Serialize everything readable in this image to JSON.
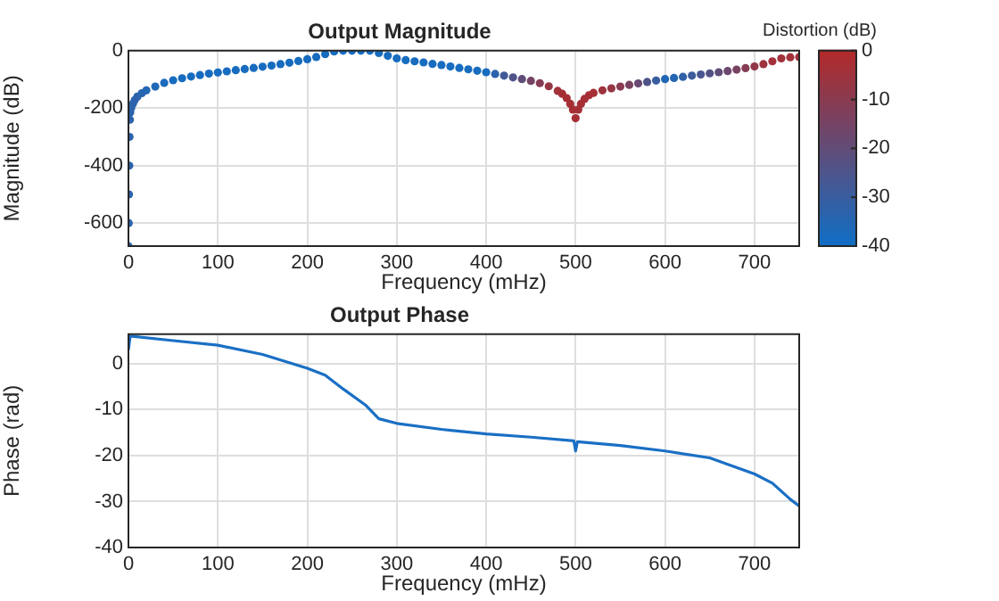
{
  "chart_data": [
    {
      "type": "scatter",
      "title": "Output Magnitude",
      "xlabel": "Frequency (mHz)",
      "ylabel": "Magnitude (dB)",
      "clabel": "Distortion (dB)",
      "x": [
        0,
        0.3,
        0.6,
        0.9,
        1.2,
        1.6,
        2,
        3,
        5,
        7,
        10,
        15,
        20,
        30,
        40,
        50,
        60,
        70,
        80,
        90,
        100,
        110,
        120,
        130,
        140,
        150,
        160,
        170,
        180,
        190,
        200,
        210,
        220,
        230,
        240,
        250,
        260,
        270,
        280,
        290,
        300,
        310,
        320,
        330,
        340,
        350,
        360,
        370,
        380,
        390,
        400,
        410,
        420,
        430,
        440,
        450,
        460,
        470,
        480,
        485,
        490,
        494,
        497,
        500,
        503,
        506,
        510,
        515,
        520,
        530,
        540,
        550,
        560,
        570,
        580,
        590,
        600,
        610,
        620,
        630,
        640,
        650,
        660,
        670,
        680,
        690,
        700,
        710,
        720,
        730,
        740,
        750
      ],
      "series": [
        {
          "values": [
            -680,
            -600,
            -500,
            -400,
            -300,
            -240,
            -215,
            -200,
            -185,
            -172,
            -160,
            -148,
            -138,
            -125,
            -112,
            -103,
            -96,
            -90,
            -85,
            -80,
            -76,
            -72,
            -68,
            -64,
            -60,
            -56,
            -52,
            -47,
            -42,
            -36,
            -30,
            -22,
            -12,
            -3,
            0,
            0,
            0,
            0,
            -8,
            -18,
            -27,
            -33,
            -37,
            -41,
            -46,
            -50,
            -55,
            -60,
            -65,
            -70,
            -75,
            -81,
            -87,
            -93,
            -99,
            -105,
            -113,
            -124,
            -140,
            -150,
            -165,
            -185,
            -205,
            -235,
            -205,
            -185,
            -168,
            -155,
            -147,
            -138,
            -131,
            -125,
            -119,
            -114,
            -109,
            -104,
            -99,
            -95,
            -91,
            -87,
            -83,
            -79,
            -75,
            -71,
            -66,
            -61,
            -55,
            -47,
            -37,
            -27,
            -23,
            -22
          ],
          "cvalues": [
            -33,
            -33,
            -33,
            -33,
            -33,
            -33,
            -33,
            -33,
            -33,
            -33,
            -33,
            -34,
            -35,
            -36,
            -37,
            -38,
            -38,
            -38,
            -38,
            -38,
            -38,
            -38,
            -38,
            -38,
            -38,
            -38,
            -38,
            -38,
            -38,
            -38,
            -38,
            -38,
            -38,
            -38,
            -38,
            -38,
            -38,
            -38,
            -38,
            -38,
            -38,
            -38,
            -38,
            -38,
            -38,
            -38,
            -38,
            -38,
            -38,
            -38,
            -38,
            -33,
            -28,
            -24,
            -20,
            -15,
            -11,
            -7,
            -4,
            -3,
            -3,
            -3,
            -3,
            -3,
            -3,
            -3,
            -3,
            -3,
            -3,
            -5,
            -7,
            -10,
            -14,
            -18,
            -24,
            -30,
            -35,
            -35,
            -32,
            -29,
            -26,
            -23,
            -20,
            -17,
            -14,
            -11,
            -8,
            -5,
            -4,
            -4,
            -4,
            -4
          ]
        }
      ],
      "marker": "circle",
      "xlim": [
        0,
        750
      ],
      "xticks": [
        0,
        100,
        200,
        300,
        400,
        500,
        600,
        700
      ],
      "ylim": [
        -680,
        0
      ],
      "yticks": [
        -600,
        -400,
        -200,
        0
      ],
      "clim": [
        -40,
        0
      ],
      "cticks": [
        -40,
        -30,
        -20,
        -10,
        0
      ],
      "grid": true,
      "legend": false
    },
    {
      "type": "line",
      "title": "Output Phase",
      "xlabel": "Frequency (mHz)",
      "ylabel": "Phase (rad)",
      "x": [
        0,
        2,
        50,
        100,
        150,
        200,
        220,
        240,
        265,
        280,
        300,
        350,
        400,
        450,
        498,
        500,
        502,
        550,
        600,
        650,
        700,
        720,
        740,
        750
      ],
      "series": [
        {
          "color": "#1a6fc4",
          "values": [
            3,
            6,
            5,
            4,
            2,
            -1,
            -2.5,
            -5.5,
            -9,
            -12,
            -13,
            -14.3,
            -15.3,
            -16,
            -16.8,
            -19,
            -17,
            -17.8,
            -19,
            -20.5,
            -24,
            -26,
            -29.5,
            -31
          ]
        }
      ],
      "xlim": [
        0,
        750
      ],
      "xticks": [
        0,
        100,
        200,
        300,
        400,
        500,
        600,
        700
      ],
      "ylim": [
        -40,
        6.4
      ],
      "yticks": [
        -40,
        -30,
        -20,
        -10,
        0
      ],
      "grid": true,
      "legend": false
    }
  ]
}
